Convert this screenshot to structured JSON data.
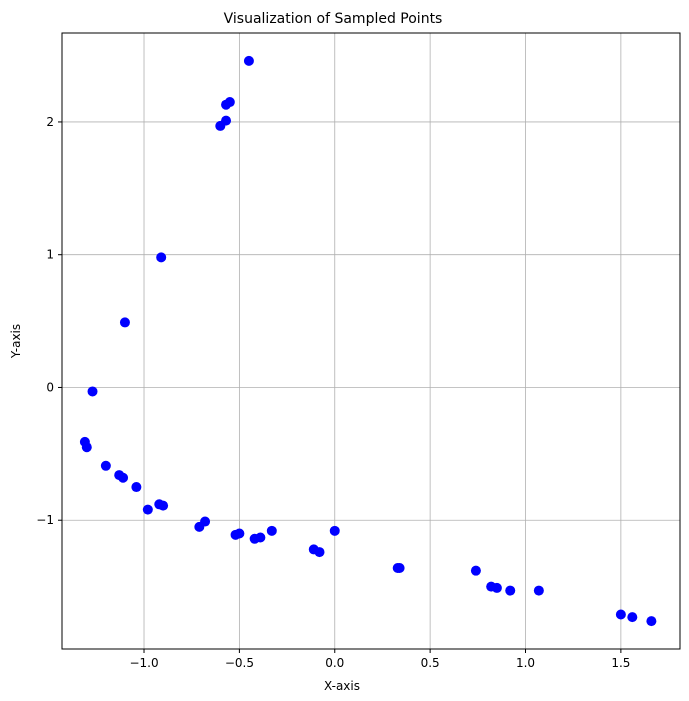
{
  "chart_data": {
    "type": "scatter",
    "title": "Visualization of Sampled Points",
    "xlabel": "X-axis",
    "ylabel": "Y-axis",
    "xlim": [
      -1.43,
      1.81
    ],
    "ylim": [
      -1.97,
      2.67
    ],
    "xticks": [
      -1.0,
      -0.5,
      0.0,
      0.5,
      1.0,
      1.5
    ],
    "xtick_labels": [
      "−1.0",
      "−0.5",
      "0.0",
      "0.5",
      "1.0",
      "1.5"
    ],
    "yticks": [
      -1,
      0,
      1,
      2
    ],
    "ytick_labels": [
      "−1",
      "0",
      "1",
      "2"
    ],
    "grid": true,
    "marker_color": "#0000ff",
    "grid_color": "#b0b0b0",
    "points": [
      {
        "x": -0.45,
        "y": 2.46
      },
      {
        "x": -0.55,
        "y": 2.15
      },
      {
        "x": -0.57,
        "y": 2.13
      },
      {
        "x": -0.57,
        "y": 2.01
      },
      {
        "x": -0.6,
        "y": 1.97
      },
      {
        "x": -0.91,
        "y": 0.98
      },
      {
        "x": -1.1,
        "y": 0.49
      },
      {
        "x": -1.27,
        "y": -0.03
      },
      {
        "x": -1.31,
        "y": -0.41
      },
      {
        "x": -1.3,
        "y": -0.45
      },
      {
        "x": -1.2,
        "y": -0.59
      },
      {
        "x": -1.13,
        "y": -0.66
      },
      {
        "x": -1.11,
        "y": -0.68
      },
      {
        "x": -1.04,
        "y": -0.75
      },
      {
        "x": -0.98,
        "y": -0.92
      },
      {
        "x": -0.92,
        "y": -0.88
      },
      {
        "x": -0.9,
        "y": -0.89
      },
      {
        "x": -0.68,
        "y": -1.01
      },
      {
        "x": -0.71,
        "y": -1.05
      },
      {
        "x": -0.52,
        "y": -1.11
      },
      {
        "x": -0.5,
        "y": -1.1
      },
      {
        "x": -0.42,
        "y": -1.14
      },
      {
        "x": -0.39,
        "y": -1.13
      },
      {
        "x": -0.33,
        "y": -1.08
      },
      {
        "x": -0.11,
        "y": -1.22
      },
      {
        "x": -0.08,
        "y": -1.24
      },
      {
        "x": 0.0,
        "y": -1.08
      },
      {
        "x": 0.33,
        "y": -1.36
      },
      {
        "x": 0.34,
        "y": -1.36
      },
      {
        "x": 0.74,
        "y": -1.38
      },
      {
        "x": 0.82,
        "y": -1.5
      },
      {
        "x": 0.85,
        "y": -1.51
      },
      {
        "x": 0.92,
        "y": -1.53
      },
      {
        "x": 1.07,
        "y": -1.53
      },
      {
        "x": 1.5,
        "y": -1.71
      },
      {
        "x": 1.56,
        "y": -1.73
      },
      {
        "x": 1.66,
        "y": -1.76
      }
    ]
  }
}
